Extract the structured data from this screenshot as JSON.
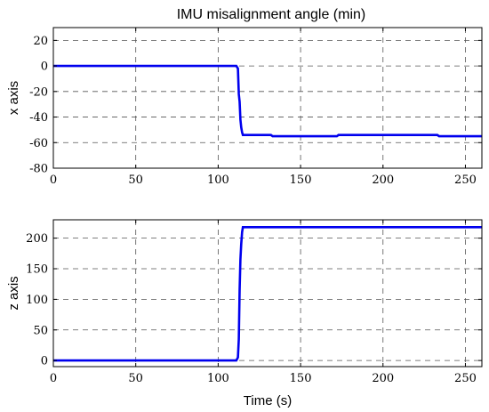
{
  "chart_data": [
    {
      "type": "line",
      "title": "IMU misalignment angle (min)",
      "ylabel": "x axis",
      "xlabel": "",
      "xlim": [
        0,
        260
      ],
      "ylim": [
        -80,
        30
      ],
      "xticks": [
        0,
        50,
        100,
        150,
        200,
        250
      ],
      "yticks": [
        20,
        0,
        -20,
        -40,
        -60,
        -80
      ],
      "grid": true,
      "series": [
        {
          "color": "#0000ee",
          "x": [
            0,
            111,
            112,
            112.5,
            113,
            113.5,
            114,
            114.5,
            115,
            132,
            133,
            172,
            173,
            233,
            234,
            260
          ],
          "y": [
            0,
            0,
            -2,
            -22,
            -28,
            -42,
            -48,
            -52,
            -54,
            -54,
            -55,
            -55,
            -54,
            -54,
            -55,
            -55
          ]
        }
      ]
    },
    {
      "type": "line",
      "title": "",
      "ylabel": "z axis",
      "xlabel": "Time (s)",
      "xlim": [
        0,
        260
      ],
      "ylim": [
        -10,
        230
      ],
      "xticks": [
        0,
        50,
        100,
        150,
        200,
        250
      ],
      "yticks": [
        200,
        150,
        100,
        50,
        0
      ],
      "grid": true,
      "series": [
        {
          "color": "#0000ee",
          "x": [
            0,
            111,
            112,
            112.5,
            113,
            113.5,
            114,
            114.5,
            115,
            260
          ],
          "y": [
            0,
            0,
            5,
            35,
            115,
            165,
            190,
            210,
            218,
            218
          ]
        }
      ]
    }
  ]
}
